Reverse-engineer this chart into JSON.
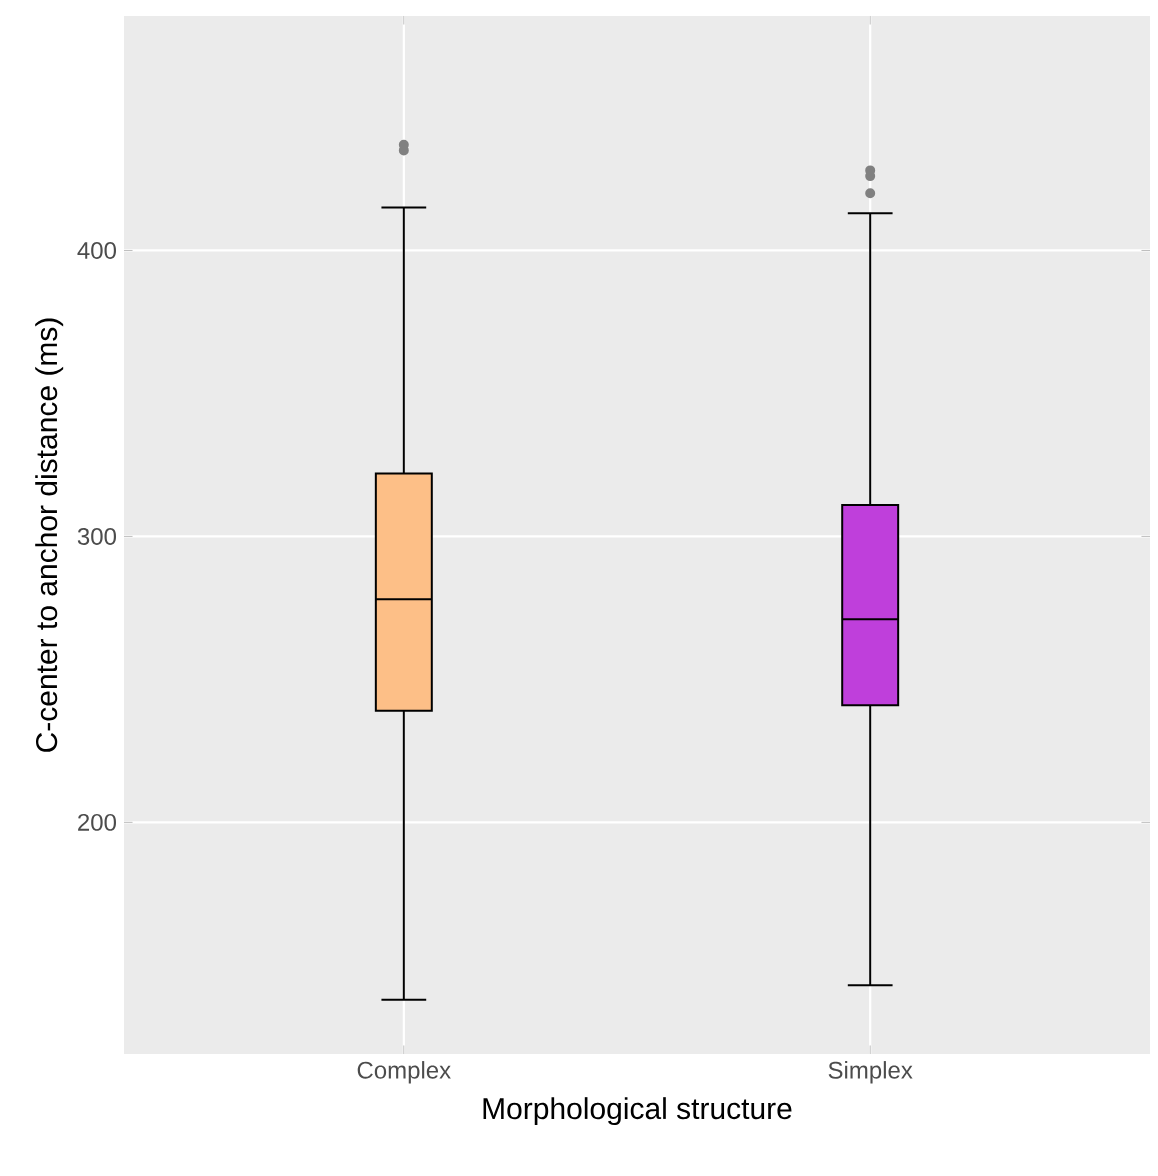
{
  "chart_data": {
    "type": "box",
    "xlabel": "Morphological structure",
    "ylabel": "C-center to anchor distance (ms)",
    "categories": [
      "Complex",
      "Simplex"
    ],
    "colors": [
      "#fdbf87",
      "#bf3fdb"
    ],
    "boxes": [
      {
        "low": 138,
        "q1": 239,
        "median": 278,
        "q3": 322,
        "high": 415,
        "outliers": [
          435,
          437
        ]
      },
      {
        "low": 143,
        "q1": 241,
        "median": 271,
        "q3": 311,
        "high": 413,
        "outliers": [
          420,
          426,
          428
        ]
      }
    ],
    "ylim": [
      119,
      482
    ],
    "yticks": [
      200,
      300,
      400
    ],
    "grid": true
  }
}
